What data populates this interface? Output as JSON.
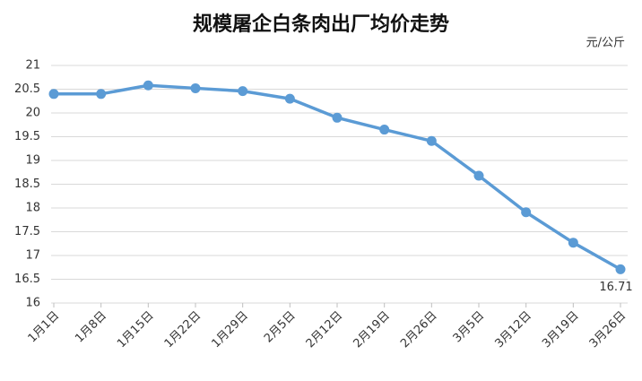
{
  "chart_data": {
    "type": "line",
    "title": "规模屠企白条肉出厂均价走势",
    "unit_label": "元/公斤",
    "categories": [
      "1月1日",
      "1月8日",
      "1月15日",
      "1月22日",
      "1月29日",
      "2月5日",
      "2月12日",
      "2月19日",
      "2月26日",
      "3月5日",
      "3月12日",
      "3月19日",
      "3月26日"
    ],
    "series": [
      {
        "name": "出厂均价",
        "color": "#5b9bd5",
        "values": [
          20.4,
          20.4,
          20.58,
          20.52,
          20.46,
          20.3,
          19.9,
          19.65,
          19.41,
          18.68,
          17.91,
          17.27,
          16.71
        ]
      }
    ],
    "ylim": [
      16,
      21
    ],
    "yticks": [
      16,
      16.5,
      17,
      17.5,
      18,
      18.5,
      19,
      19.5,
      20,
      20.5,
      21
    ],
    "grid": true,
    "show_last_value": true
  }
}
